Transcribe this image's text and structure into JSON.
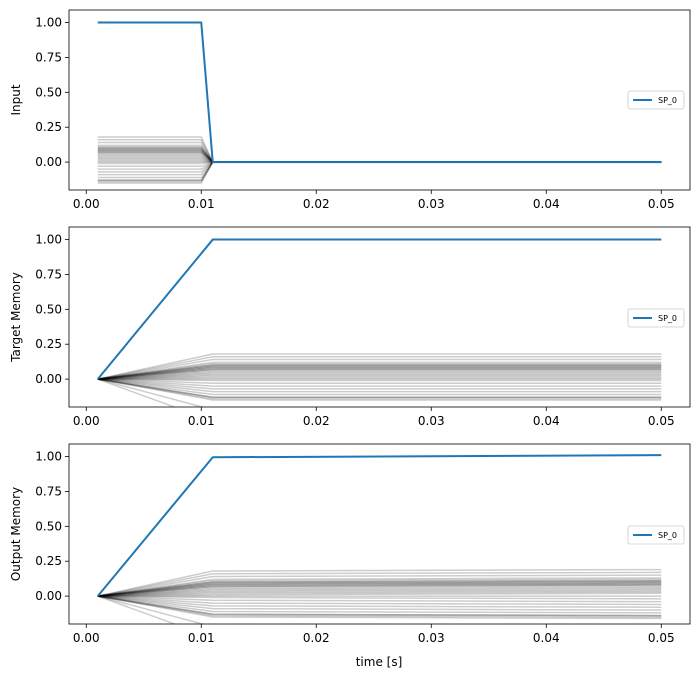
{
  "colors": {
    "highlight": "#1f77b4",
    "background_lines": "#000000",
    "axes": "#000000"
  },
  "x_ticks": [
    "0.00",
    "0.01",
    "0.02",
    "0.03",
    "0.04",
    "0.05"
  ],
  "y_ticks": [
    "0.00",
    "0.25",
    "0.50",
    "0.75",
    "1.00"
  ],
  "chart_data": [
    {
      "type": "line",
      "ylabel": "Input",
      "xlabel": "",
      "xlim": [
        -0.0015,
        0.0525
      ],
      "ylim": [
        -0.2,
        1.09
      ],
      "grid": false,
      "legend": {
        "entries": [
          "SP_0"
        ],
        "placement": "center-right"
      },
      "x": [
        0.001,
        0.01,
        0.011,
        0.05
      ],
      "series": [
        {
          "name": "SP_0",
          "values": [
            1.0,
            1.0,
            0.0,
            0.0
          ]
        }
      ],
      "background_series": {
        "x": [
          0.001,
          0.01,
          0.011,
          0.05
        ],
        "start_values": [
          0.18,
          0.16,
          0.14,
          0.12,
          0.11,
          0.1,
          0.1,
          0.09,
          0.09,
          0.08,
          0.08,
          0.07,
          0.07,
          0.06,
          0.05,
          0.04,
          0.03,
          0.02,
          0.01,
          0.0,
          -0.01,
          -0.03,
          -0.05,
          -0.07,
          -0.09,
          -0.11,
          -0.13,
          -0.13,
          -0.14,
          -0.15
        ],
        "end_value": 0.0
      }
    },
    {
      "type": "line",
      "ylabel": "Target Memory",
      "xlabel": "",
      "xlim": [
        -0.0015,
        0.0525
      ],
      "ylim": [
        -0.2,
        1.09
      ],
      "grid": false,
      "legend": {
        "entries": [
          "SP_0"
        ],
        "placement": "center-right"
      },
      "x": [
        0.001,
        0.011,
        0.05
      ],
      "series": [
        {
          "name": "SP_0",
          "values": [
            0.0,
            1.0,
            1.0
          ]
        }
      ],
      "background_series": {
        "x": [
          0.001,
          0.011,
          0.05
        ],
        "final_values": [
          0.18,
          0.16,
          0.14,
          0.12,
          0.11,
          0.1,
          0.1,
          0.09,
          0.09,
          0.08,
          0.08,
          0.07,
          0.07,
          0.06,
          0.05,
          0.04,
          0.03,
          0.02,
          0.01,
          0.0,
          -0.01,
          -0.03,
          -0.05,
          -0.07,
          -0.09,
          -0.11,
          -0.13,
          -0.13,
          -0.14,
          -0.15,
          -0.22,
          -0.3
        ],
        "start_value": 0.0
      }
    },
    {
      "type": "line",
      "ylabel": "Output Memory",
      "xlabel": "time [s]",
      "xlim": [
        -0.0015,
        0.0525
      ],
      "ylim": [
        -0.2,
        1.09
      ],
      "grid": false,
      "legend": {
        "entries": [
          "SP_0"
        ],
        "placement": "center-right"
      },
      "x": [
        0.001,
        0.011,
        0.05
      ],
      "series": [
        {
          "name": "SP_0",
          "values": [
            0.0,
            0.995,
            1.01
          ]
        }
      ],
      "background_series": {
        "x": [
          0.001,
          0.011,
          0.05
        ],
        "final_values": [
          0.18,
          0.16,
          0.14,
          0.12,
          0.11,
          0.1,
          0.1,
          0.09,
          0.09,
          0.08,
          0.08,
          0.07,
          0.07,
          0.06,
          0.05,
          0.04,
          0.03,
          0.02,
          0.01,
          0.0,
          -0.01,
          -0.03,
          -0.05,
          -0.07,
          -0.09,
          -0.11,
          -0.13,
          -0.13,
          -0.14,
          -0.15,
          -0.22,
          -0.3
        ],
        "start_value": 0.0,
        "drift": 0.01
      }
    }
  ]
}
